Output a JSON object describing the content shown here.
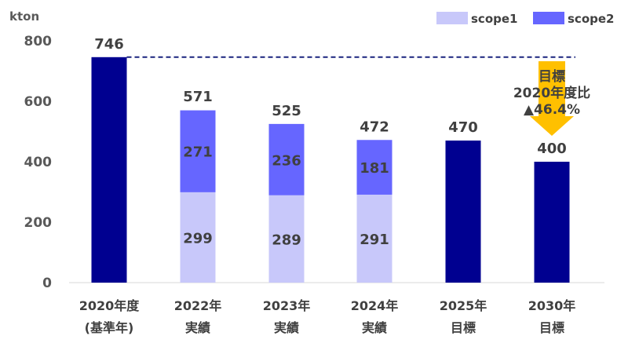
{
  "chart_data": {
    "type": "bar",
    "stacked": true,
    "y_unit": "kton",
    "ylim": [
      0,
      800
    ],
    "yticks": [
      0,
      200,
      400,
      600,
      800
    ],
    "grid": false,
    "legend": "top-right",
    "categories": [
      [
        "2020年度",
        "(基準年)"
      ],
      [
        "2022年",
        "実績"
      ],
      [
        "2023年",
        "実績"
      ],
      [
        "2024年",
        "実績"
      ],
      [
        "2025年",
        "目標"
      ],
      [
        "2030年",
        "目標"
      ]
    ],
    "series": [
      {
        "name": "scope1",
        "color": "#c8c8fa",
        "values": [
          null,
          299,
          289,
          291,
          null,
          null
        ]
      },
      {
        "name": "scope2",
        "color": "#6666ff",
        "values": [
          null,
          271,
          236,
          181,
          null,
          null
        ]
      },
      {
        "name": "",
        "color": "#000090",
        "values": [
          746,
          null,
          null,
          null,
          470,
          400
        ]
      }
    ],
    "totals": [
      746,
      571,
      525,
      472,
      470,
      400
    ],
    "reference_line": {
      "value": 746,
      "style": "dashed",
      "color": "#1a237e"
    },
    "annotation": {
      "lines": [
        "目標",
        "2020年度比",
        "▲46.4%"
      ],
      "arrow_color": "#ffc000"
    }
  }
}
